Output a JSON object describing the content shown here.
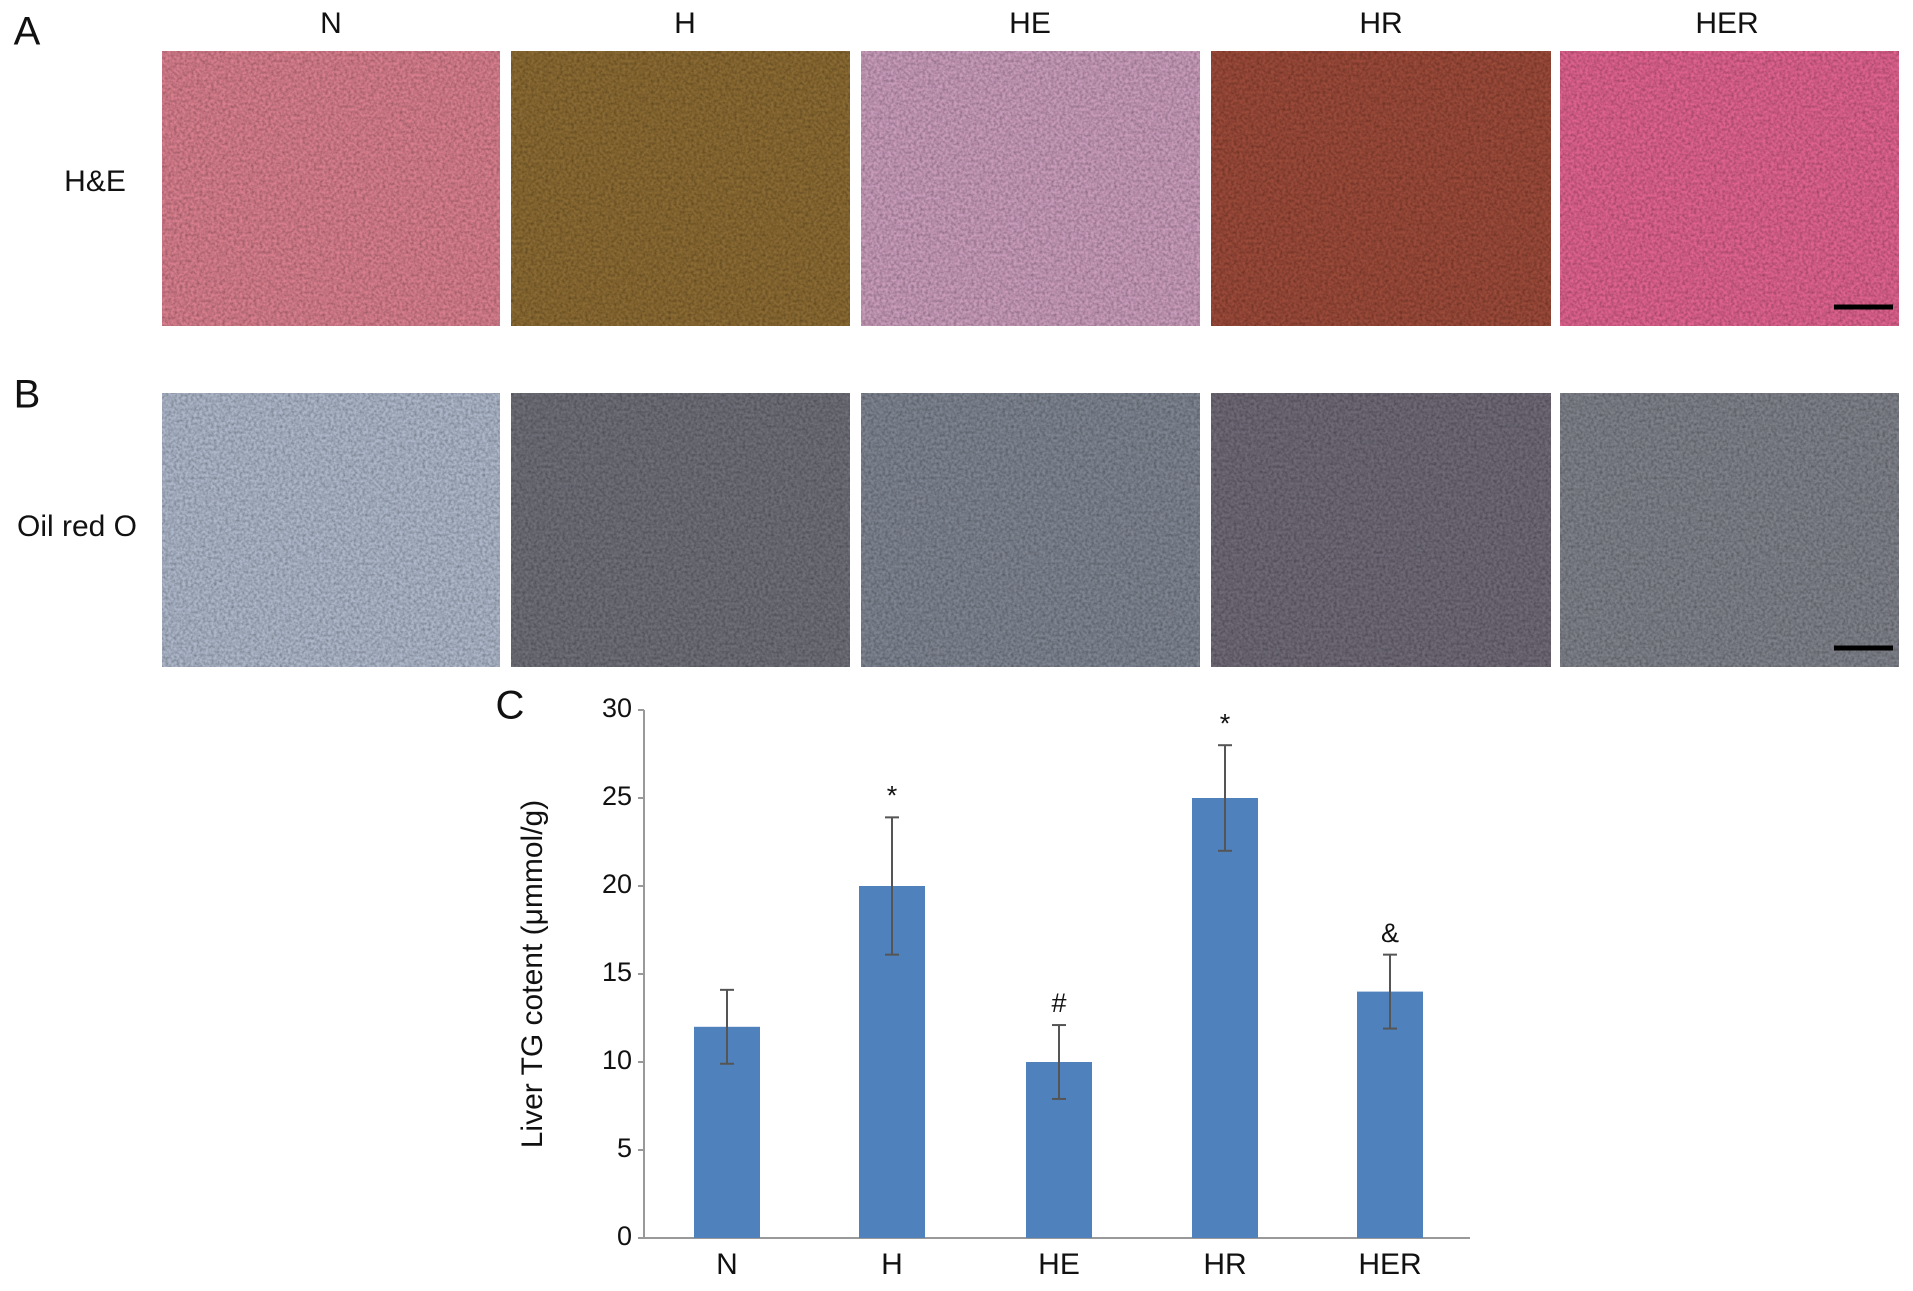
{
  "panel_labels": [
    "A",
    "B",
    "C"
  ],
  "columns": [
    "N",
    "H",
    "HE",
    "HR",
    "HER"
  ],
  "row_labels": [
    "H&E",
    "Oil red O"
  ],
  "chart_data": {
    "type": "bar",
    "y_label": "Liver TG cotent (μmmol/g)",
    "categories": [
      "N",
      "H",
      "HE",
      "HR",
      "HER"
    ],
    "values": [
      12,
      20,
      10,
      25,
      14
    ],
    "errors": [
      2.1,
      3.9,
      2.1,
      3,
      2.1
    ],
    "annotations": [
      null,
      "*",
      "#",
      "*",
      "&"
    ],
    "color": "#4f81bd",
    "ylim": [
      0,
      30
    ],
    "yticks": [
      0,
      5,
      10,
      15,
      20,
      25,
      30
    ]
  }
}
